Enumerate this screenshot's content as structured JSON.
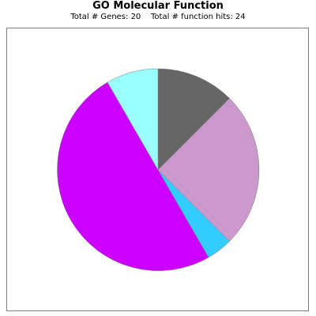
{
  "chart_data": {
    "type": "pie",
    "title": "GO Molecular Function",
    "subtitle": "Total # Genes: 20    Total # function hits: 24",
    "start_angle_deg": 0,
    "direction": "clockwise",
    "slices": [
      {
        "value": 3,
        "color": "#666666"
      },
      {
        "value": 6,
        "color": "#cc99cc"
      },
      {
        "value": 1,
        "color": "#33ccff"
      },
      {
        "value": 12,
        "color": "#cc00ff"
      },
      {
        "value": 2,
        "color": "#99ffff"
      }
    ]
  }
}
